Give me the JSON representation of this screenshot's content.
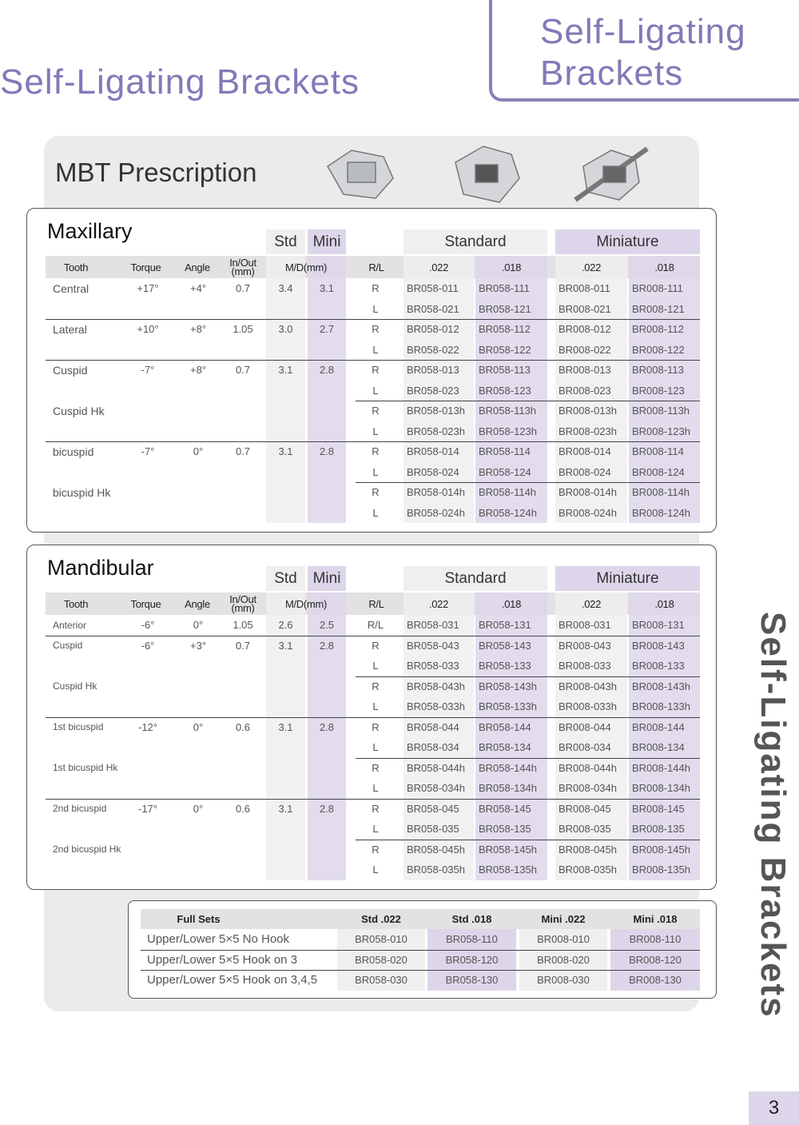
{
  "header": {
    "title": "Self-Ligating Brackets",
    "corner_title": [
      "Self-Ligating",
      "Brackets"
    ]
  },
  "section_title": "MBT Prescription",
  "side_text": "Self-Ligating Brackets",
  "page_number": "3",
  "tables": [
    {
      "title": "Maxillary",
      "groups": [
        "Std",
        "Mini",
        "Standard",
        "Miniature"
      ],
      "columns": [
        "Tooth",
        "Torque",
        "Angle",
        "In/Out (mm)",
        "M/D(mm)",
        "R/L",
        ".022",
        ".018",
        ".022",
        ".018"
      ],
      "rows": [
        [
          "Central",
          "+17°",
          "+4°",
          "0.7",
          "3.4",
          "3.1",
          "R",
          "BR058-011",
          "BR058-111",
          "BR008-011",
          "BR008-111"
        ],
        [
          null,
          null,
          null,
          null,
          null,
          null,
          "L",
          "BR058-021",
          "BR058-121",
          "BR008-021",
          "BR008-121"
        ],
        [
          "Lateral",
          "+10°",
          "+8°",
          "1.05",
          "3.0",
          "2.7",
          "R",
          "BR058-012",
          "BR058-112",
          "BR008-012",
          "BR008-112"
        ],
        [
          null,
          null,
          null,
          null,
          null,
          null,
          "L",
          "BR058-022",
          "BR058-122",
          "BR008-022",
          "BR008-122"
        ],
        [
          "Cuspid",
          "-7°",
          "+8°",
          "0.7",
          "3.1",
          "2.8",
          "R",
          "BR058-013",
          "BR058-113",
          "BR008-013",
          "BR008-113"
        ],
        [
          null,
          null,
          null,
          null,
          null,
          null,
          "L",
          "BR058-023",
          "BR058-123",
          "BR008-023",
          "BR008-123"
        ],
        [
          "Cuspid Hk",
          null,
          null,
          null,
          null,
          null,
          "R",
          "BR058-013h",
          "BR058-113h",
          "BR008-013h",
          "BR008-113h"
        ],
        [
          null,
          null,
          null,
          null,
          null,
          null,
          "L",
          "BR058-023h",
          "BR058-123h",
          "BR008-023h",
          "BR008-123h"
        ],
        [
          "bicuspid",
          "-7°",
          "0°",
          "0.7",
          "3.1",
          "2.8",
          "R",
          "BR058-014",
          "BR058-114",
          "BR008-014",
          "BR008-114"
        ],
        [
          null,
          null,
          null,
          null,
          null,
          null,
          "L",
          "BR058-024",
          "BR058-124",
          "BR008-024",
          "BR008-124"
        ],
        [
          "bicuspid Hk",
          null,
          null,
          null,
          null,
          null,
          "R",
          "BR058-014h",
          "BR058-114h",
          "BR008-014h",
          "BR008-114h"
        ],
        [
          null,
          null,
          null,
          null,
          null,
          null,
          "L",
          "BR058-024h",
          "BR058-124h",
          "BR008-024h",
          "BR008-124h"
        ]
      ]
    },
    {
      "title": "Mandibular",
      "groups": [
        "Std",
        "Mini",
        "Standard",
        "Miniature"
      ],
      "columns": [
        "Tooth",
        "Torque",
        "Angle",
        "In/Out (mm)",
        "M/D(mm)",
        "R/L",
        ".022",
        ".018",
        ".022",
        ".018"
      ],
      "rows": [
        [
          "Anterior",
          "-6°",
          "0°",
          "1.05",
          "2.6",
          "2.5",
          "R/L",
          "BR058-031",
          "BR058-131",
          "BR008-031",
          "BR008-131"
        ],
        [
          "Cuspid",
          "-6°",
          "+3°",
          "0.7",
          "3.1",
          "2.8",
          "R",
          "BR058-043",
          "BR058-143",
          "BR008-043",
          "BR008-143"
        ],
        [
          null,
          null,
          null,
          null,
          null,
          null,
          "L",
          "BR058-033",
          "BR058-133",
          "BR008-033",
          "BR008-133"
        ],
        [
          "Cuspid Hk",
          null,
          null,
          null,
          null,
          null,
          "R",
          "BR058-043h",
          "BR058-143h",
          "BR008-043h",
          "BR008-143h"
        ],
        [
          null,
          null,
          null,
          null,
          null,
          null,
          "L",
          "BR058-033h",
          "BR058-133h",
          "BR008-033h",
          "BR008-133h"
        ],
        [
          "1st bicuspid",
          "-12°",
          "0°",
          "0.6",
          "3.1",
          "2.8",
          "R",
          "BR058-044",
          "BR058-144",
          "BR008-044",
          "BR008-144"
        ],
        [
          null,
          null,
          null,
          null,
          null,
          null,
          "L",
          "BR058-034",
          "BR058-134",
          "BR008-034",
          "BR008-134"
        ],
        [
          "1st bicuspid Hk",
          null,
          null,
          null,
          null,
          null,
          "R",
          "BR058-044h",
          "BR058-144h",
          "BR008-044h",
          "BR008-144h"
        ],
        [
          null,
          null,
          null,
          null,
          null,
          null,
          "L",
          "BR058-034h",
          "BR058-134h",
          "BR008-034h",
          "BR008-134h"
        ],
        [
          "2nd bicuspid",
          "-17°",
          "0°",
          "0.6",
          "3.1",
          "2.8",
          "R",
          "BR058-045",
          "BR058-145",
          "BR008-045",
          "BR008-145"
        ],
        [
          null,
          null,
          null,
          null,
          null,
          null,
          "L",
          "BR058-035",
          "BR058-135",
          "BR008-035",
          "BR008-135"
        ],
        [
          "2nd bicuspid Hk",
          null,
          null,
          null,
          null,
          null,
          "R",
          "BR058-045h",
          "BR058-145h",
          "BR008-045h",
          "BR008-145h"
        ],
        [
          null,
          null,
          null,
          null,
          null,
          null,
          "L",
          "BR058-035h",
          "BR058-135h",
          "BR008-035h",
          "BR008-135h"
        ]
      ]
    }
  ],
  "full_sets": {
    "columns": [
      "Full Sets",
      "Std .022",
      "Std .018",
      "Mini .022",
      "Mini .018"
    ],
    "rows": [
      [
        "Upper/Lower 5×5 No Hook",
        "BR058-010",
        "BR058-110",
        "BR008-010",
        "BR008-110"
      ],
      [
        "Upper/Lower 5×5 Hook on 3",
        "BR058-020",
        "BR058-120",
        "BR008-020",
        "BR008-120"
      ],
      [
        "Upper/Lower 5×5 Hook on 3,4,5",
        "BR058-030",
        "BR058-130",
        "BR008-030",
        "BR008-130"
      ]
    ]
  }
}
